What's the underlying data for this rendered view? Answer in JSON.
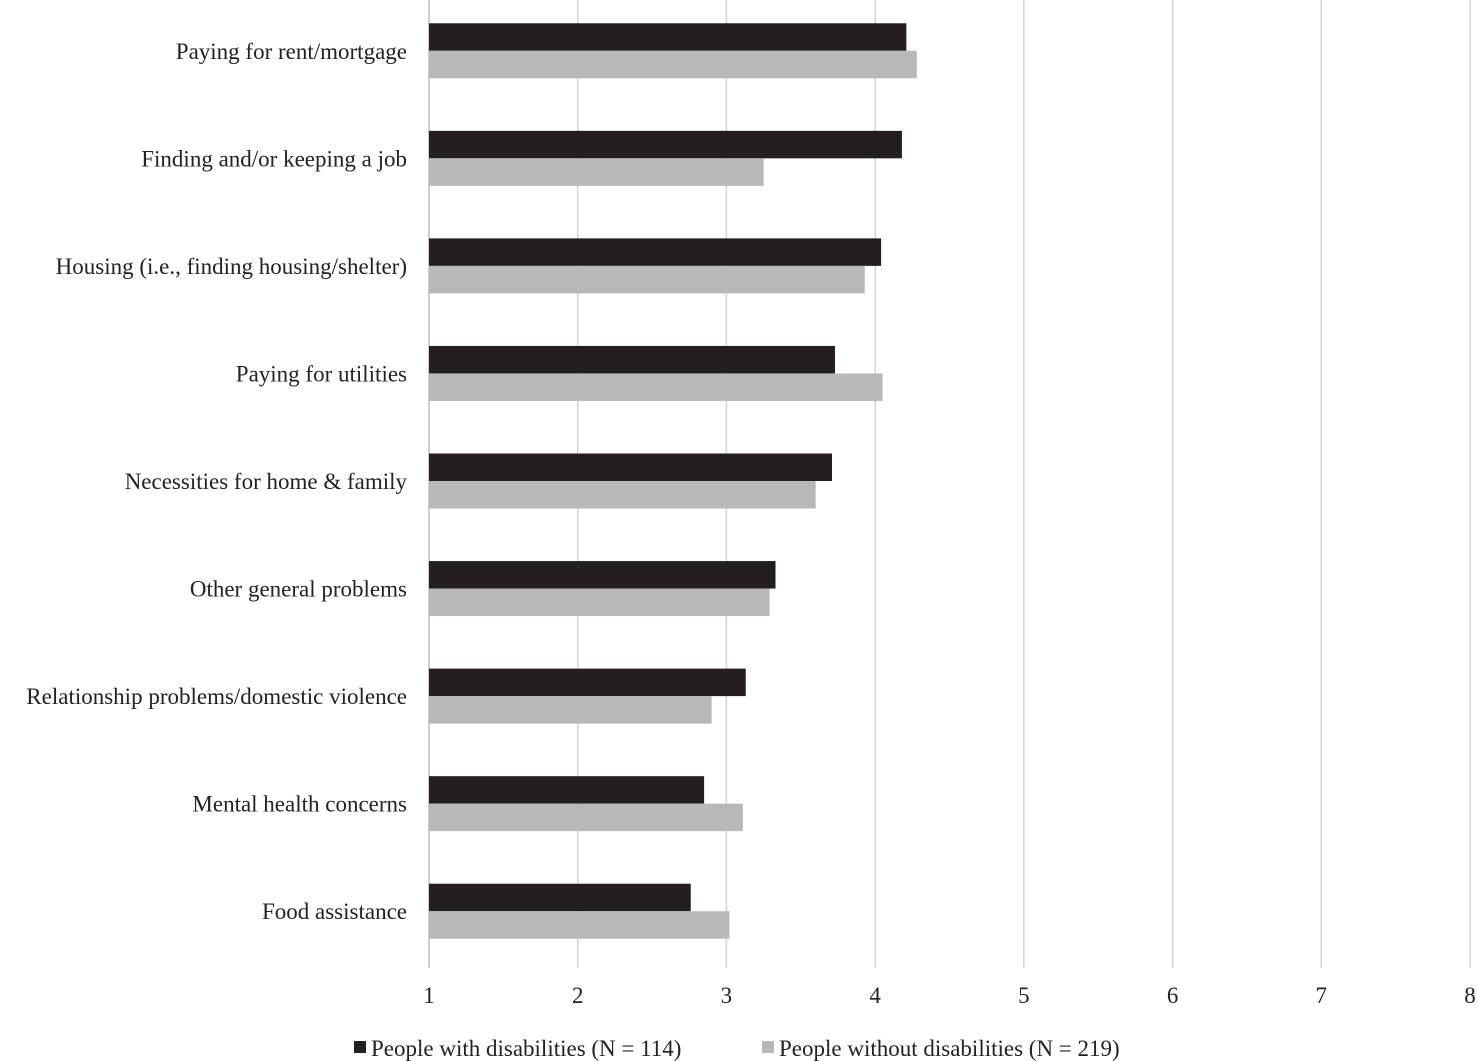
{
  "chart_data": {
    "type": "bar",
    "orientation": "horizontal",
    "categories": [
      "Paying for rent/mortgage",
      "Finding and/or keeping a job",
      "Housing (i.e., finding housing/shelter)",
      "Paying for utilities",
      "Necessities for home & family",
      "Other general problems",
      "Relationship problems/domestic violence",
      "Mental health concerns",
      "Food assistance"
    ],
    "series": [
      {
        "name": "People with disabilities (N = 114)",
        "color": "#231f20",
        "values": [
          4.21,
          4.18,
          4.04,
          3.73,
          3.71,
          3.33,
          3.13,
          2.85,
          2.76
        ]
      },
      {
        "name": "People without disabilities (N = 219)",
        "color": "#b7b8ba",
        "values": [
          4.28,
          3.25,
          3.93,
          4.05,
          3.6,
          3.29,
          2.9,
          3.11,
          3.02
        ]
      }
    ],
    "xlim": [
      1,
      8
    ],
    "xticks": [
      "1",
      "2",
      "3",
      "4",
      "5",
      "6",
      "7",
      "8"
    ],
    "grid": true,
    "legend_position": "bottom",
    "title": "",
    "xlabel": "",
    "ylabel": ""
  }
}
